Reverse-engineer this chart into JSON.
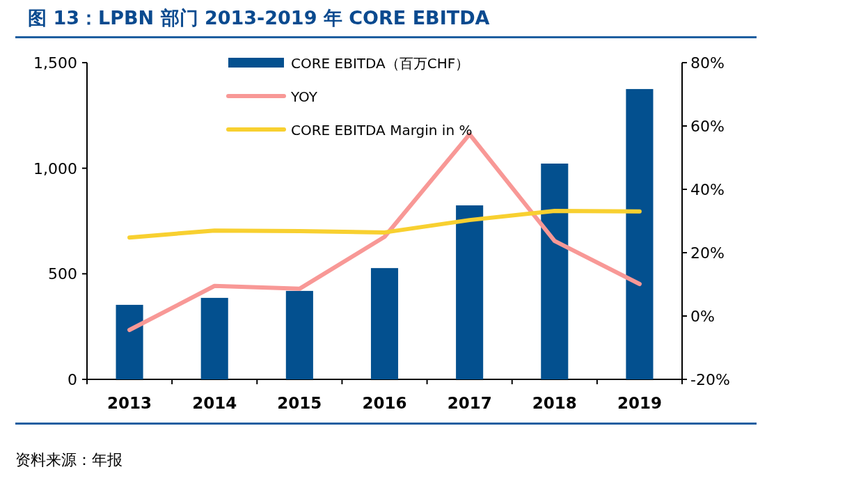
{
  "chart_data": {
    "type": "bar",
    "title": "图 13：LPBN 部门 2013-2019 年 CORE EBITDA",
    "annotations": [
      "资料来源：年报"
    ],
    "categories": [
      "2013",
      "2014",
      "2015",
      "2016",
      "2017",
      "2018",
      "2019"
    ],
    "series": [
      {
        "name": "CORE EBITDA（百万CHF）",
        "color": "#03508f",
        "values": [
          353,
          386,
          419,
          527,
          824,
          1022,
          1375
        ]
      },
      {
        "name": "YOY",
        "type": "line",
        "axis": "y2",
        "color": "#f89896",
        "values": [
          -4.4,
          9.5,
          8.6,
          25,
          57.4,
          23.7,
          10.1
        ]
      },
      {
        "name": "CORE EBITDA Margin in %",
        "type": "line",
        "axis": "y2",
        "color": "#f8d030",
        "values": [
          24.8,
          27,
          26.8,
          26.4,
          30.3,
          33.2,
          33.0
        ]
      }
    ],
    "ylim": [
      0,
      1500
    ],
    "yticks": [
      {
        "value": 0,
        "label": "0"
      },
      {
        "value": 500,
        "label": "500"
      },
      {
        "value": 1000,
        "label": "1,000"
      },
      {
        "value": 1500,
        "label": "1,500"
      }
    ],
    "y2lim": [
      -20,
      80
    ],
    "y2ticks": [
      {
        "value": -20,
        "label": "-20%"
      },
      {
        "value": 0,
        "label": "0%"
      },
      {
        "value": 20,
        "label": "20%"
      },
      {
        "value": 40,
        "label": "40%"
      },
      {
        "value": 60,
        "label": "60%"
      },
      {
        "value": 80,
        "label": "80%"
      }
    ],
    "legend": "top",
    "grid": false
  }
}
